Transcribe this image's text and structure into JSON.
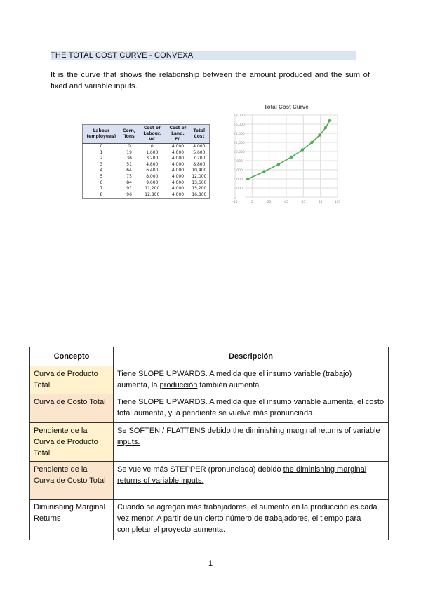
{
  "heading": "THE TOTAL COST CURVE   - CONVEXA",
  "intro": "It is the curve that shows the relationship between the amount produced and the sum of fixed and variable inputs.",
  "data_table": {
    "headers": [
      "Labour (employees)",
      "Corn, Tons",
      "Cost of Labour, VC",
      "Cost of Land, FC",
      "Total Cost"
    ],
    "rows": [
      [
        "0",
        "0",
        "0",
        "4,000",
        "4,000"
      ],
      [
        "1",
        "19",
        "1,600",
        "4,000",
        "5,600"
      ],
      [
        "2",
        "36",
        "3,200",
        "4,000",
        "7,200"
      ],
      [
        "3",
        "51",
        "4,800",
        "4,000",
        "8,800"
      ],
      [
        "4",
        "64",
        "6,400",
        "4,000",
        "10,400"
      ],
      [
        "5",
        "75",
        "8,000",
        "4,000",
        "12,000"
      ],
      [
        "6",
        "84",
        "9,600",
        "4,000",
        "13,600"
      ],
      [
        "7",
        "91",
        "11,200",
        "4,000",
        "15,200"
      ],
      [
        "8",
        "96",
        "12,800",
        "4,000",
        "16,800"
      ]
    ]
  },
  "chart_data": {
    "type": "scatter",
    "title": "Total Cost Curve",
    "x": [
      0,
      19,
      36,
      51,
      64,
      75,
      84,
      91,
      96
    ],
    "y": [
      4000,
      5600,
      7200,
      8800,
      10400,
      12000,
      13600,
      15200,
      16800
    ],
    "xlim": [
      -15,
      105
    ],
    "ylim": [
      0,
      18000
    ],
    "xticks": [
      "-15",
      "5",
      "25",
      "45",
      "65",
      "85",
      "105"
    ],
    "yticks": [
      "0",
      "2,000",
      "4,000",
      "6,000",
      "8,000",
      "10,000",
      "12,000",
      "14,000",
      "16,000",
      "18,000"
    ],
    "grid": true,
    "lines": true,
    "color": "#4caf50"
  },
  "concepts": {
    "headers": [
      "Concepto",
      "Descripción"
    ],
    "rows": [
      {
        "concept": "Curva de Producto Total",
        "color": "#fff2cc",
        "desc": [
          {
            "t": "Tiene SLOPE UPWARDS. A medida que el "
          },
          {
            "t": "insumo variable",
            "u": true
          },
          {
            "t": " (trabajo) aumenta, la "
          },
          {
            "t": "producción",
            "u": true
          },
          {
            "t": " también aumenta."
          }
        ]
      },
      {
        "concept": "Curva de Costo Total",
        "color": "#fce5cd",
        "desc": [
          {
            "t": "Tiene SLOPE UPWARDS. A medida que el insumo variable aumenta, el costo total aumenta, y la pendiente se vuelve más pronunciada."
          }
        ]
      },
      {
        "concept": "Pendiente de la Curva de Producto Total",
        "color": "#fff2cc",
        "desc": [
          {
            "t": "Se SOFTEN / FLATTENS debido "
          },
          {
            "t": "the diminishing marginal returns of variable inputs.",
            "u": true
          }
        ]
      },
      {
        "concept": "Pendiente de la Curva de Costo Total",
        "color": "#fce5cd",
        "desc": [
          {
            "t": "Se vuelve más STEPPER (pronunciada) debido "
          },
          {
            "t": "the diminishing marginal returns of variable inputs.",
            "u": true
          }
        ]
      },
      {
        "concept": "Diminishing Marginal Returns",
        "color": "#ffffff",
        "desc": [
          {
            "t": "Cuando se agregan más trabajadores, el aumento en la producción es cada vez menor. A partir de un cierto número de trabajadores, el tiempo para completar el proyecto aumenta."
          }
        ]
      }
    ]
  },
  "page_number": "1"
}
